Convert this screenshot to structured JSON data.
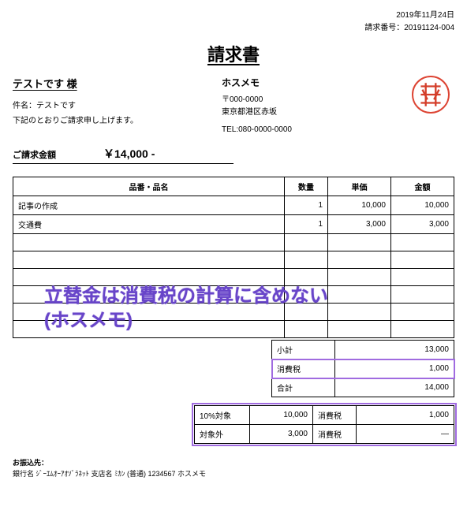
{
  "header": {
    "date": "2019年11月24日",
    "invoice_no_label": "請求番号：",
    "invoice_no": "20191124-004"
  },
  "title": "請求書",
  "recipient": {
    "name": "テストです 様",
    "subject_label": "件名：",
    "subject": "テストです",
    "note": "下記のとおりご請求申し上げます。"
  },
  "sender": {
    "name": "ホスメモ",
    "postal": "〒000-0000",
    "address": "東京都港区赤坂",
    "tel": "TEL:080-0000-0000"
  },
  "seal_color": "#d43e2a",
  "amount": {
    "label": "ご請求金額",
    "value": "￥14,000 -"
  },
  "table": {
    "headers": {
      "desc": "品番・品名",
      "qty": "数量",
      "price": "単価",
      "amount": "金額"
    },
    "rows": [
      {
        "desc": "記事の作成",
        "qty": "1",
        "price": "10,000",
        "amount": "10,000"
      },
      {
        "desc": "交通費",
        "qty": "1",
        "price": "3,000",
        "amount": "3,000"
      },
      {
        "desc": "",
        "qty": "",
        "price": "",
        "amount": ""
      },
      {
        "desc": "",
        "qty": "",
        "price": "",
        "amount": ""
      },
      {
        "desc": "",
        "qty": "",
        "price": "",
        "amount": ""
      },
      {
        "desc": "",
        "qty": "",
        "price": "",
        "amount": ""
      },
      {
        "desc": "",
        "qty": "",
        "price": "",
        "amount": ""
      },
      {
        "desc": "",
        "qty": "",
        "price": "",
        "amount": ""
      }
    ]
  },
  "annotation": {
    "line1": "立替金は消費税の計算に含めない",
    "line2": "(ホスメモ)",
    "color": "#6845c9"
  },
  "summary": {
    "subtotal_label": "小計",
    "subtotal": "13,000",
    "tax_label": "消費税",
    "tax": "1,000",
    "total_label": "合計",
    "total": "14,000"
  },
  "breakdown": {
    "r1_label": "10%対象",
    "r1_amount": "10,000",
    "r1_tax_label": "消費税",
    "r1_tax": "1,000",
    "r2_label": "対象外",
    "r2_amount": "3,000",
    "r2_tax_label": "消費税",
    "r2_tax": "—"
  },
  "footer": {
    "label": "お振込先：",
    "detail": "銀行名 ｼﾞｰｴﾑｵｰｱｵｿﾞﾗﾈｯﾄ 支店名 ﾐｶﾝ (普通) 1234567 ホスメモ"
  },
  "highlight_color": "#a06be0"
}
